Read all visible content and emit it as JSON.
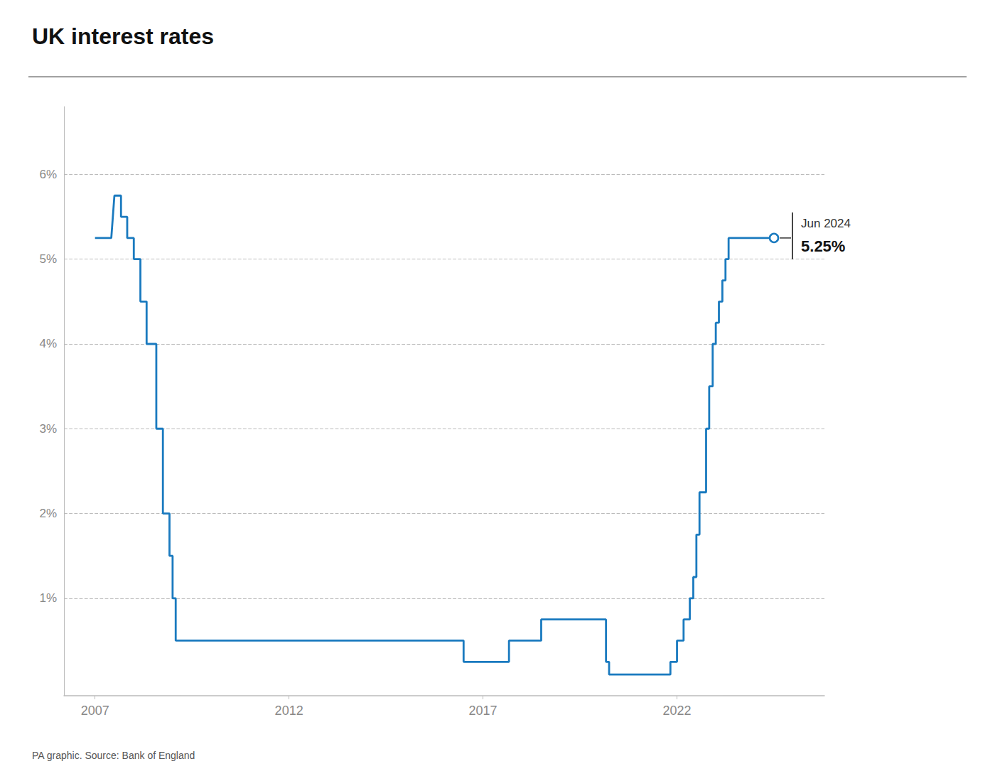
{
  "chart_data": {
    "type": "line",
    "title": "UK interest rates",
    "source": "PA graphic. Source: Bank of England",
    "color": "#1a7abf",
    "grid": true,
    "annotations": [
      {
        "x": 2024.5,
        "y": 5.25,
        "text": "Jun 2024",
        "value_label": "5.25%"
      }
    ],
    "xlim": [
      2006.2,
      2025.8
    ],
    "xticks": [
      2007,
      2012,
      2017,
      2022
    ],
    "ylim": [
      -0.15,
      6.8
    ],
    "yticks": [
      {
        "value": 1,
        "label": "1%"
      },
      {
        "value": 2,
        "label": "2%"
      },
      {
        "value": 3,
        "label": "3%"
      },
      {
        "value": 4,
        "label": "4%"
      },
      {
        "value": 5,
        "label": "5%"
      },
      {
        "value": 6,
        "label": "6%"
      }
    ],
    "x": [
      2007.0,
      2007.42,
      2007.5,
      2007.67,
      2007.67,
      2007.83,
      2007.83,
      2008.0,
      2008.0,
      2008.17,
      2008.17,
      2008.33,
      2008.33,
      2008.58,
      2008.58,
      2008.75,
      2008.75,
      2008.92,
      2008.92,
      2009.0,
      2009.0,
      2009.08,
      2009.08,
      2009.25,
      2016.5,
      2016.5,
      2016.75,
      2017.67,
      2017.67,
      2017.92,
      2018.5,
      2018.5,
      2019.5,
      2019.5,
      2019.83,
      2019.83,
      2020.17,
      2020.17,
      2020.25,
      2020.25,
      2020.5,
      2021.83,
      2021.83,
      2021.92,
      2021.92,
      2022.0,
      2022.0,
      2022.17,
      2022.17,
      2022.33,
      2022.33,
      2022.42,
      2022.42,
      2022.5,
      2022.5,
      2022.58,
      2022.58,
      2022.67,
      2022.67,
      2022.75,
      2022.75,
      2022.83,
      2022.83,
      2022.92,
      2022.92,
      2023.0,
      2023.0,
      2023.08,
      2023.08,
      2023.17,
      2023.17,
      2023.25,
      2023.25,
      2023.33,
      2023.33,
      2023.5,
      2024.5
    ],
    "values": [
      5.25,
      5.25,
      5.75,
      5.75,
      5.5,
      5.5,
      5.25,
      5.25,
      5.0,
      5.0,
      4.5,
      4.5,
      4.0,
      4.0,
      3.0,
      3.0,
      2.0,
      2.0,
      1.5,
      1.5,
      1.0,
      1.0,
      0.5,
      0.5,
      0.5,
      0.25,
      0.25,
      0.25,
      0.5,
      0.5,
      0.5,
      0.75,
      0.75,
      0.75,
      0.75,
      0.75,
      0.75,
      0.25,
      0.25,
      0.1,
      0.1,
      0.1,
      0.25,
      0.25,
      0.25,
      0.25,
      0.5,
      0.5,
      0.75,
      0.75,
      1.0,
      1.0,
      1.25,
      1.25,
      1.75,
      1.75,
      2.25,
      2.25,
      2.25,
      2.25,
      3.0,
      3.0,
      3.5,
      3.5,
      4.0,
      4.0,
      4.25,
      4.25,
      4.5,
      4.5,
      4.75,
      4.75,
      5.0,
      5.0,
      5.25,
      5.25,
      5.25
    ]
  }
}
